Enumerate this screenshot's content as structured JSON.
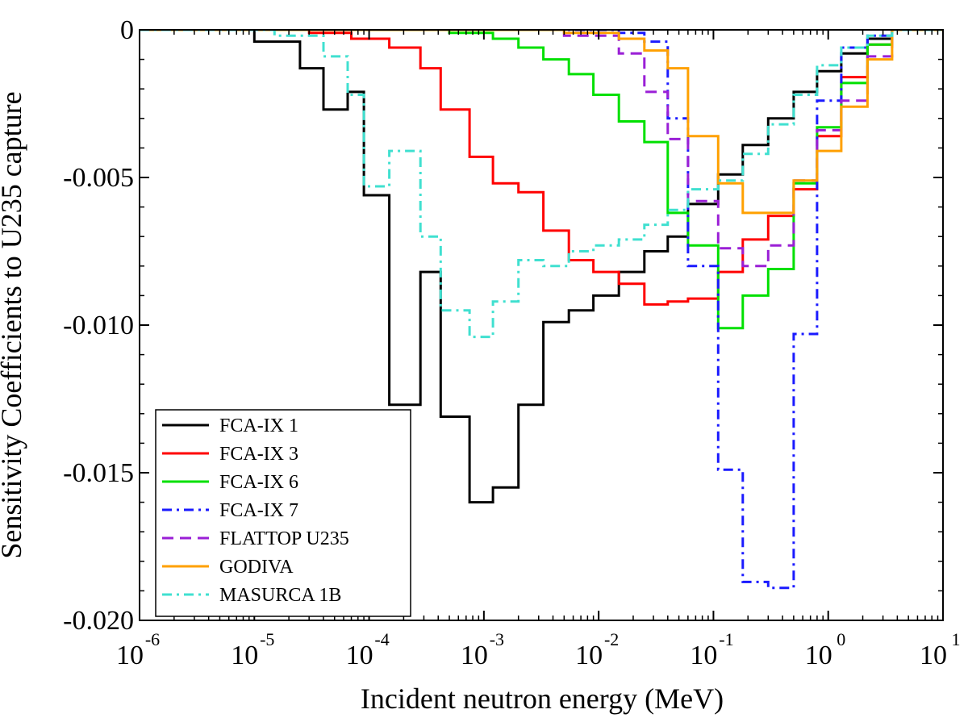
{
  "chart_data": {
    "type": "line",
    "step": true,
    "title": "",
    "xlabel": "Incident neutron energy (MeV)",
    "ylabel": "Sensitivity Coefficients to U235 capture",
    "xscale": "log",
    "xlim": [
      1e-06,
      10
    ],
    "ylim": [
      -0.02,
      0.0
    ],
    "x_ticks": [
      {
        "base": "10",
        "exp": "-6",
        "value": 1e-06
      },
      {
        "base": "10",
        "exp": "-5",
        "value": 1e-05
      },
      {
        "base": "10",
        "exp": "-4",
        "value": 0.0001
      },
      {
        "base": "10",
        "exp": "-3",
        "value": 0.001
      },
      {
        "base": "10",
        "exp": "-2",
        "value": 0.01
      },
      {
        "base": "10",
        "exp": "-1",
        "value": 0.1
      },
      {
        "base": "10",
        "exp": "0",
        "value": 1
      },
      {
        "base": "10",
        "exp": "1",
        "value": 10
      }
    ],
    "y_ticks": [
      {
        "label": "0",
        "value": 0.0
      },
      {
        "label": "-0.005",
        "value": -0.005
      },
      {
        "label": "-0.010",
        "value": -0.01
      },
      {
        "label": "-0.015",
        "value": -0.015
      },
      {
        "label": "-0.020",
        "value": -0.02
      }
    ],
    "legend_position": "bottom-left",
    "series": [
      {
        "name": "FCA-IX 1",
        "color": "#000000",
        "dash": "solid",
        "edges": [
          1e-06,
          1e-05,
          2.5e-05,
          4e-05,
          6.5e-05,
          9e-05,
          0.00015,
          0.00028,
          0.00042,
          0.00075,
          0.0012,
          0.002,
          0.0033,
          0.0055,
          0.009,
          0.015,
          0.025,
          0.04,
          0.06,
          0.11,
          0.18,
          0.3,
          0.5,
          0.8,
          1.3,
          2.2,
          3.6,
          10
        ],
        "values": [
          0,
          -0.0004,
          -0.0013,
          -0.0027,
          -0.0021,
          -0.0056,
          -0.0127,
          -0.0082,
          -0.0131,
          -0.016,
          -0.0155,
          -0.0127,
          -0.0099,
          -0.0095,
          -0.009,
          -0.0082,
          -0.0075,
          -0.007,
          -0.0059,
          -0.0049,
          -0.0039,
          -0.003,
          -0.0021,
          -0.0014,
          -0.0008,
          -0.0003,
          0
        ]
      },
      {
        "name": "FCA-IX 3",
        "color": "#ff0000",
        "dash": "solid",
        "edges": [
          1e-06,
          3e-05,
          7e-05,
          0.00015,
          0.00028,
          0.00042,
          0.00075,
          0.0012,
          0.002,
          0.0033,
          0.0055,
          0.009,
          0.015,
          0.025,
          0.04,
          0.06,
          0.11,
          0.18,
          0.3,
          0.5,
          0.8,
          1.3,
          2.2,
          3.6,
          10
        ],
        "values": [
          0,
          -0.0001,
          -0.0003,
          -0.0006,
          -0.0013,
          -0.0027,
          -0.0043,
          -0.0052,
          -0.0055,
          -0.0068,
          -0.0078,
          -0.0082,
          -0.0086,
          -0.0093,
          -0.0092,
          -0.0091,
          -0.0082,
          -0.0071,
          -0.0063,
          -0.0054,
          -0.0036,
          -0.0016,
          -0.0005,
          0
        ]
      },
      {
        "name": "FCA-IX 6",
        "color": "#00e000",
        "dash": "solid",
        "edges": [
          1e-06,
          0.0005,
          0.0012,
          0.002,
          0.0033,
          0.0055,
          0.009,
          0.015,
          0.025,
          0.04,
          0.06,
          0.11,
          0.18,
          0.3,
          0.5,
          0.8,
          1.3,
          2.2,
          3.6,
          10
        ],
        "values": [
          0,
          -0.0001,
          -0.0003,
          -0.0006,
          -0.001,
          -0.0015,
          -0.0022,
          -0.0031,
          -0.0038,
          -0.0062,
          -0.0073,
          -0.0101,
          -0.009,
          -0.0081,
          -0.0052,
          -0.0033,
          -0.0018,
          -0.0005,
          0
        ]
      },
      {
        "name": "FCA-IX 7",
        "color": "#1a1aff",
        "dash": "dashdot",
        "edges": [
          1e-06,
          0.005,
          0.015,
          0.025,
          0.04,
          0.06,
          0.11,
          0.18,
          0.3,
          0.5,
          0.8,
          1.3,
          2.2,
          3.6,
          10
        ],
        "values": [
          0,
          0,
          -0.0001,
          -0.0004,
          -0.003,
          -0.008,
          -0.0149,
          -0.0187,
          -0.0189,
          -0.0103,
          -0.0024,
          -0.0006,
          -0.0002,
          0
        ]
      },
      {
        "name": "FLATTOP U235",
        "color": "#9a1fd6",
        "dash": "dashed",
        "edges": [
          1e-06,
          0.005,
          0.015,
          0.025,
          0.04,
          0.06,
          0.11,
          0.18,
          0.3,
          0.5,
          0.8,
          1.3,
          2.2,
          3.6,
          10
        ],
        "values": [
          0,
          -0.0002,
          -0.0008,
          -0.0021,
          -0.0037,
          -0.0058,
          -0.0074,
          -0.008,
          -0.0073,
          -0.0051,
          -0.0034,
          -0.0024,
          -0.0009,
          0
        ]
      },
      {
        "name": "GODIVA",
        "color": "#ffa000",
        "dash": "solid",
        "edges": [
          1e-06,
          0.005,
          0.015,
          0.025,
          0.04,
          0.06,
          0.11,
          0.18,
          0.3,
          0.5,
          0.8,
          1.3,
          2.2,
          3.6,
          10
        ],
        "values": [
          0,
          -0.0001,
          -0.0003,
          -0.0007,
          -0.0013,
          -0.0036,
          -0.0052,
          -0.0062,
          -0.0062,
          -0.0051,
          -0.0041,
          -0.0026,
          -0.001,
          0
        ]
      },
      {
        "name": "MASURCA 1B",
        "color": "#40e0d0",
        "dash": "dashdot",
        "edges": [
          1e-06,
          1.5e-05,
          4e-05,
          6.5e-05,
          9e-05,
          0.00015,
          0.00028,
          0.00042,
          0.00075,
          0.0012,
          0.002,
          0.0033,
          0.0055,
          0.009,
          0.015,
          0.025,
          0.04,
          0.06,
          0.11,
          0.18,
          0.3,
          0.5,
          0.8,
          1.3,
          2.2,
          3.6,
          10
        ],
        "values": [
          0,
          -0.0002,
          -0.0009,
          -0.0022,
          -0.0053,
          -0.0041,
          -0.007,
          -0.0095,
          -0.0104,
          -0.0092,
          -0.0078,
          -0.008,
          -0.0075,
          -0.0073,
          -0.0071,
          -0.0066,
          -0.0061,
          -0.0054,
          -0.0051,
          -0.0042,
          -0.0032,
          -0.0022,
          -0.0012,
          -0.0006,
          -0.0002,
          0
        ]
      }
    ]
  }
}
